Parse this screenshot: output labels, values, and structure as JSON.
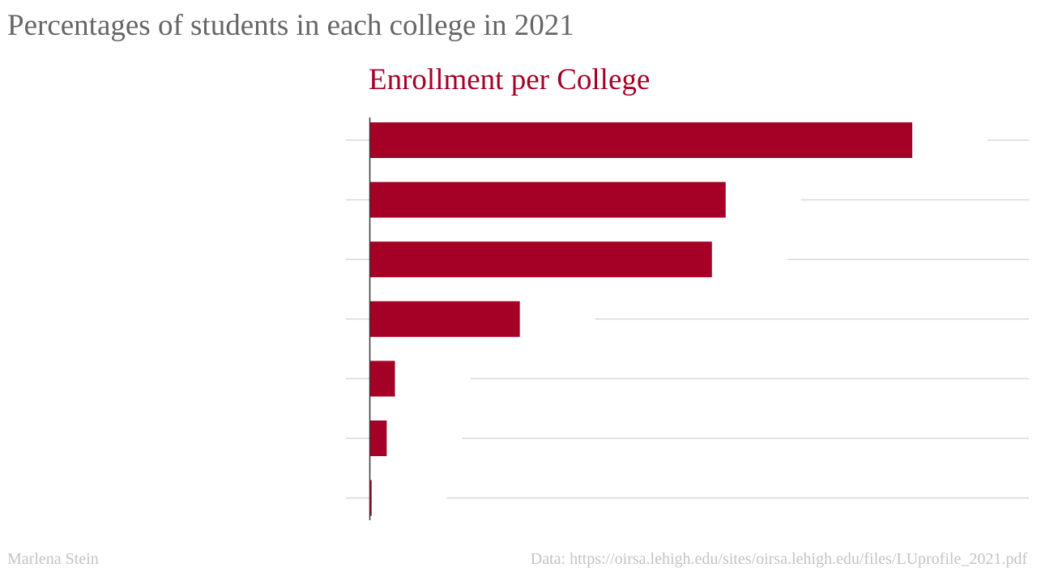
{
  "header": {
    "title": "Percentages of students in each college in 2021"
  },
  "footer": {
    "author": "Marlena Stein",
    "source": "Data: https://oirsa.lehigh.edu/sites/oirsa.lehigh.edu/files/LUprofile_2021.pdf"
  },
  "colors": {
    "bar": "#a50026",
    "title": "#a50026",
    "grid": "#d9d9d9",
    "axis": "#333333"
  },
  "chart_data": {
    "type": "bar",
    "orientation": "horizontal",
    "title": "Enrollment per College",
    "categories": [
      "",
      "",
      "",
      "",
      "",
      "",
      ""
    ],
    "values": [
      39.5,
      25.9,
      24.9,
      10.9,
      1.8,
      1.2,
      0.1
    ],
    "xlim": [
      0,
      48
    ],
    "grid": true,
    "legend": "none"
  }
}
